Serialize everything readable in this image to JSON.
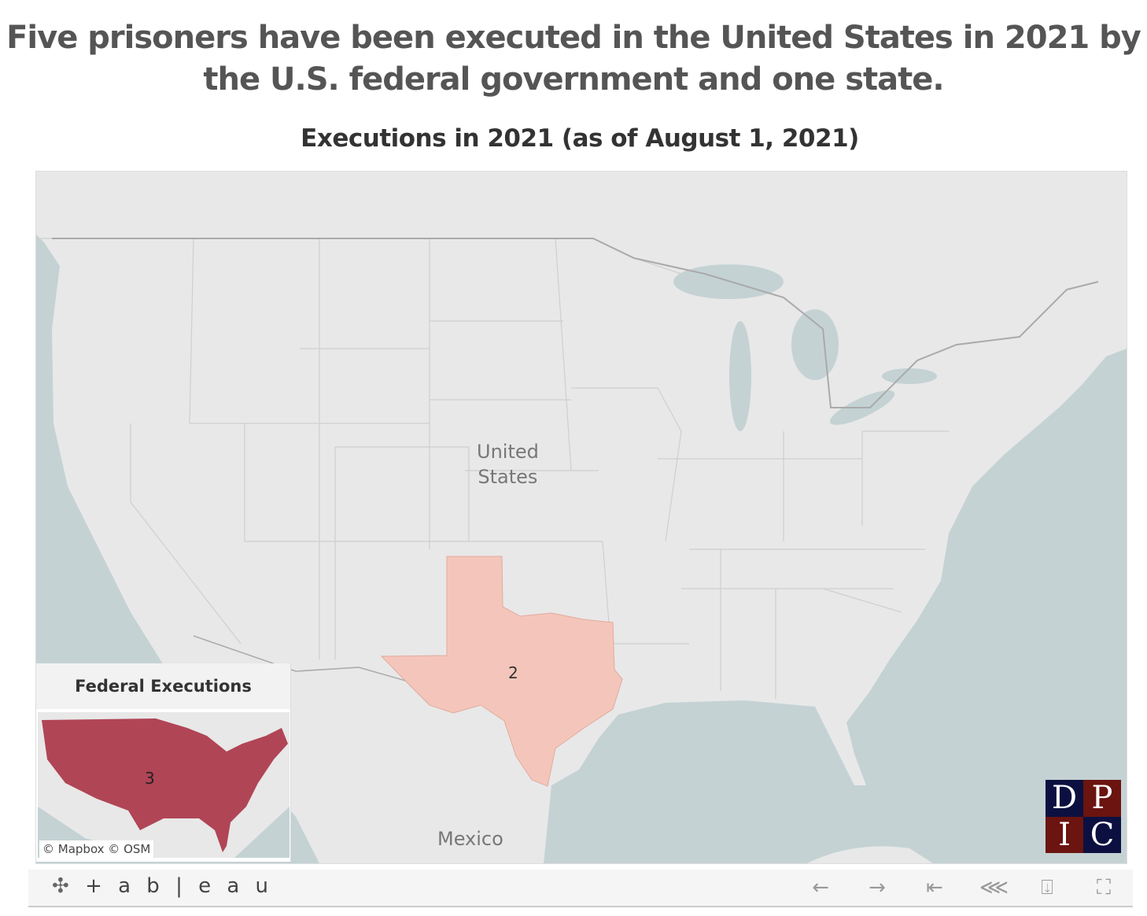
{
  "title": "Five prisoners have been executed in the United States in 2021 by the U.S. federal government and one state.",
  "subtitle": "Executions in 2021 (as of August 1, 2021)",
  "map": {
    "labels": {
      "country": "United States",
      "mexico": "Mexico"
    },
    "states": [
      {
        "name": "Texas",
        "value": "2",
        "color": "#f4c6bb"
      }
    ],
    "inset": {
      "title": "Federal Executions",
      "value": "3",
      "color": "#b04556",
      "attribution": "© Mapbox  © OSM"
    },
    "logo": [
      "D",
      "P",
      "I",
      "C"
    ],
    "colors": {
      "land": "#e8e8e8",
      "water": "#c4d2d4",
      "logo_navy": "#0c1040",
      "logo_maroon": "#6b1410"
    }
  },
  "toolbar": {
    "brand": "+ a b | e a u",
    "icons": [
      "undo-icon",
      "redo-icon",
      "revert-icon",
      "share-icon",
      "download-icon",
      "fullscreen-icon"
    ]
  }
}
